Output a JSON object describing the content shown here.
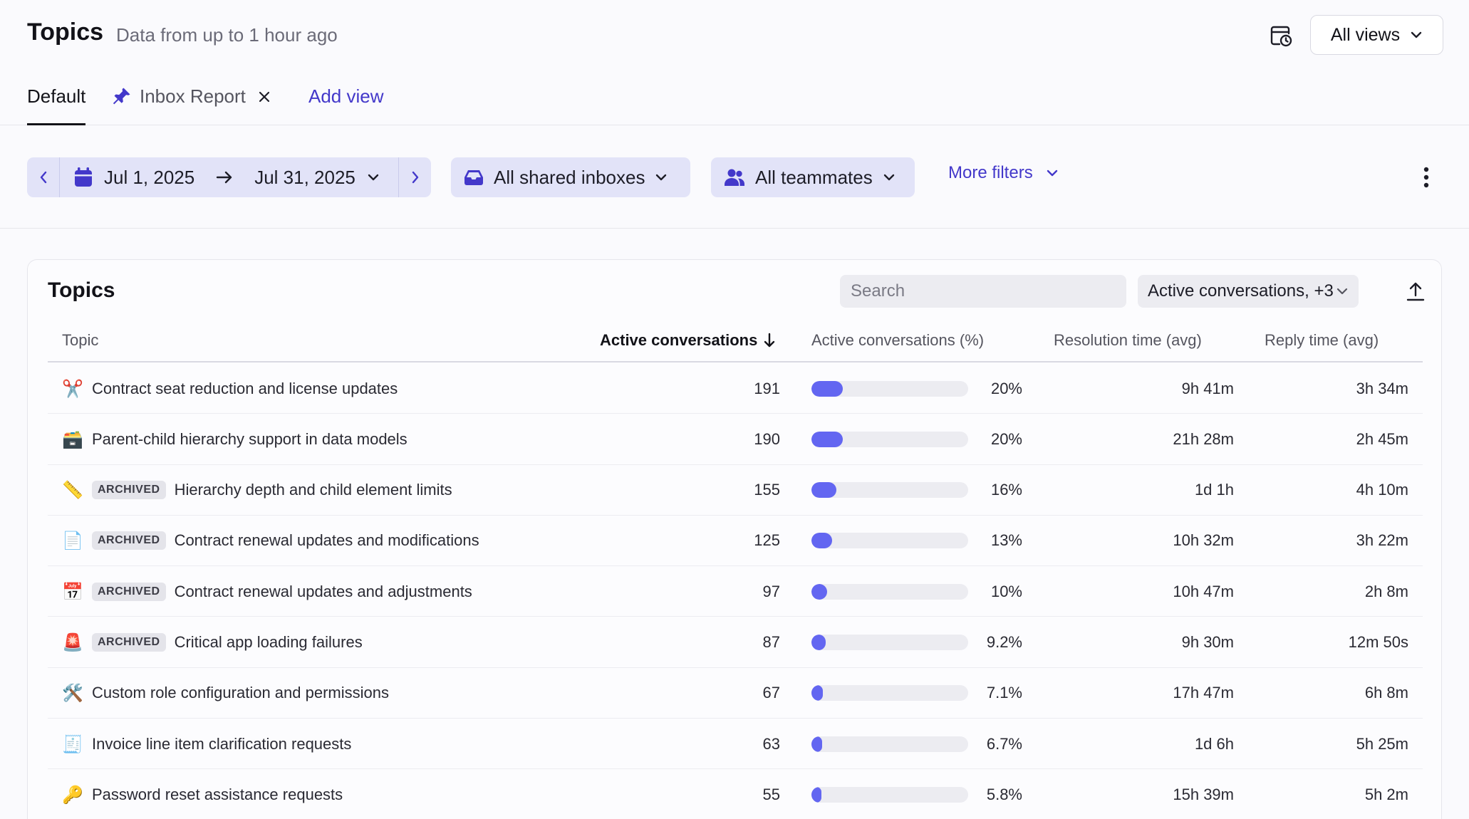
{
  "header": {
    "title": "Topics",
    "subtitle": "Data from up to 1 hour ago",
    "views_label": "All views"
  },
  "tabs": [
    {
      "label": "Default",
      "active": true
    },
    {
      "label": "Inbox Report",
      "pinned": true,
      "closable": true
    },
    {
      "label": "Add view"
    }
  ],
  "filters": {
    "date_start": "Jul 1, 2025",
    "date_end": "Jul 31, 2025",
    "inboxes": "All shared inboxes",
    "teammates": "All teammates",
    "more": "More filters"
  },
  "card": {
    "title": "Topics",
    "search_placeholder": "Search",
    "metric_select": "Active conversations, +3"
  },
  "columns": {
    "topic": "Topic",
    "active": "Active conversations",
    "active_pct": "Active conversations (%)",
    "resolution": "Resolution time (avg)",
    "reply": "Reply time (avg)"
  },
  "rows": [
    {
      "icon": "✂️",
      "icon_name": "scissors-icon",
      "archived": false,
      "topic": "Contract seat reduction and license updates",
      "count": "191",
      "pct": "20%",
      "pct_value": 0.2,
      "resolution": "9h 41m",
      "reply": "3h 34m"
    },
    {
      "icon": "🗃️",
      "icon_name": "box-icon",
      "archived": false,
      "topic": "Parent-child hierarchy support in data models",
      "count": "190",
      "pct": "20%",
      "pct_value": 0.2,
      "resolution": "21h 28m",
      "reply": "2h 45m"
    },
    {
      "icon": "📏",
      "icon_name": "ruler-icon",
      "archived": true,
      "badge": "ARCHIVED",
      "topic": "Hierarchy depth and child element limits",
      "count": "155",
      "pct": "16%",
      "pct_value": 0.16,
      "resolution": "1d 1h",
      "reply": "4h 10m"
    },
    {
      "icon": "📄",
      "icon_name": "document-icon",
      "archived": true,
      "badge": "ARCHIVED",
      "topic": "Contract renewal updates and modifications",
      "count": "125",
      "pct": "13%",
      "pct_value": 0.13,
      "resolution": "10h 32m",
      "reply": "3h 22m"
    },
    {
      "icon": "📅",
      "icon_name": "calendar-icon",
      "archived": true,
      "badge": "ARCHIVED",
      "topic": "Contract renewal updates and adjustments",
      "count": "97",
      "pct": "10%",
      "pct_value": 0.1,
      "resolution": "10h 47m",
      "reply": "2h 8m"
    },
    {
      "icon": "🚨",
      "icon_name": "siren-icon",
      "archived": true,
      "badge": "ARCHIVED",
      "topic": "Critical app loading failures",
      "count": "87",
      "pct": "9.2%",
      "pct_value": 0.092,
      "resolution": "9h 30m",
      "reply": "12m 50s"
    },
    {
      "icon": "🛠️",
      "icon_name": "tools-icon",
      "archived": false,
      "topic": "Custom role configuration and permissions",
      "count": "67",
      "pct": "7.1%",
      "pct_value": 0.071,
      "resolution": "17h 47m",
      "reply": "6h 8m"
    },
    {
      "icon": "🧾",
      "icon_name": "receipt-icon",
      "archived": false,
      "topic": "Invoice line item clarification requests",
      "count": "63",
      "pct": "6.7%",
      "pct_value": 0.067,
      "resolution": "1d 6h",
      "reply": "5h 25m"
    },
    {
      "icon": "🔑",
      "icon_name": "key-icon",
      "archived": false,
      "topic": "Password reset assistance requests",
      "count": "55",
      "pct": "5.8%",
      "pct_value": 0.058,
      "resolution": "15h 39m",
      "reply": "5h 2m"
    }
  ],
  "colors": {
    "accent": "#4338ca",
    "bar": "#6366f1",
    "pill_bg": "#e2e3f8"
  }
}
